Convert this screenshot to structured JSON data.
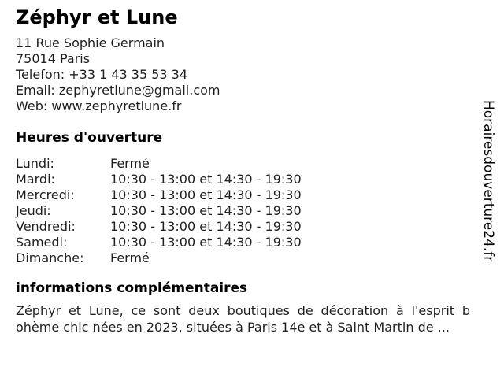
{
  "business": {
    "name": "Zéphyr et Lune",
    "address_line1": "11 Rue Sophie Germain",
    "address_line2": "75014 Paris",
    "phone_line": "Telefon: +33 1 43 35 53 34",
    "email_line": "Email: zephyretlune@gmail.com",
    "web_line": "Web: www.zephyretlune.fr"
  },
  "hours": {
    "heading": "Heures d'ouverture",
    "rows": [
      {
        "day": "Lundi:",
        "time": "Fermé"
      },
      {
        "day": "Mardi:",
        "time": "10:30 - 13:00 et 14:30 - 19:30"
      },
      {
        "day": "Mercredi:",
        "time": "10:30 - 13:00 et 14:30 - 19:30"
      },
      {
        "day": "Jeudi:",
        "time": "10:30 - 13:00 et 14:30 - 19:30"
      },
      {
        "day": "Vendredi:",
        "time": "10:30 - 13:00 et 14:30 - 19:30"
      },
      {
        "day": "Samedi:",
        "time": "10:30 - 13:00 et 14:30 - 19:30"
      },
      {
        "day": "Dimanche:",
        "time": "Fermé"
      }
    ]
  },
  "info": {
    "heading": "informations complémentaires",
    "lines": [
      "Zéphyr et Lune, ce sont deux boutiques de décoration à l'esprit b",
      "ohème chic nées en 2023, situées à Paris 14e et à Saint Martin de ..."
    ]
  },
  "watermark": "Horairesdouverture24.fr",
  "colors": {
    "text": "#1f1f1f",
    "heading": "#000000",
    "background": "#ffffff"
  }
}
